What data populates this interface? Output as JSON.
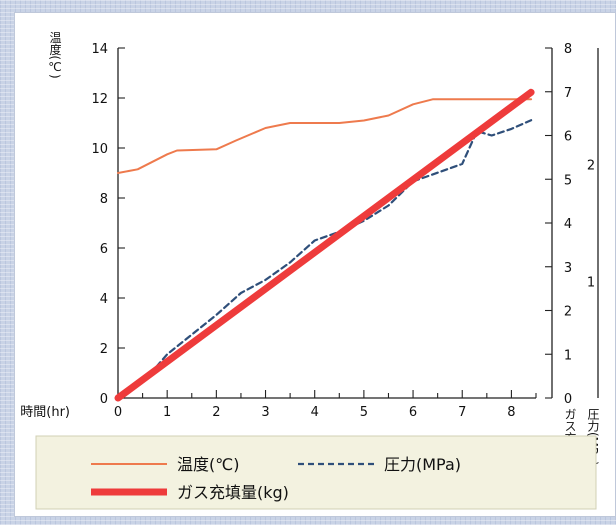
{
  "chart_data": {
    "type": "line",
    "x_axis": {
      "label": "時間(hr)",
      "ticks": [
        "0",
        "1",
        "2",
        "3",
        "4",
        "5",
        "6",
        "7",
        "8"
      ],
      "range": [
        0,
        8.5
      ],
      "minor_tick_step": 0.5
    },
    "y_left": {
      "label": "温度(℃)",
      "ticks": [
        "0",
        "2",
        "4",
        "6",
        "8",
        "10",
        "12",
        "14"
      ],
      "range": [
        0,
        14
      ]
    },
    "y_right_pressure": {
      "label": "圧力(MPa)",
      "ticks": [
        "0",
        "1",
        "2",
        "3",
        "4",
        "5",
        "6",
        "7",
        "8"
      ],
      "range": [
        0,
        8
      ]
    },
    "y_right_gas": {
      "label": "ガス充填量(kg)",
      "ticks": [
        "1",
        "2"
      ],
      "range": [
        0,
        3.0
      ]
    },
    "grid": false,
    "legend_position": "bottom",
    "series": [
      {
        "name": "温度(℃)",
        "axis": "temperature",
        "color": "#ee7a4d",
        "style": "solid",
        "x": [
          0,
          0.4,
          1,
          1.2,
          2,
          2.4,
          3,
          3.5,
          4,
          4.5,
          5,
          5.5,
          6,
          6.4,
          7,
          7.5,
          8,
          8.4
        ],
        "y": [
          9.0,
          9.15,
          9.75,
          9.9,
          9.95,
          10.3,
          10.8,
          11.0,
          11.0,
          11.0,
          11.1,
          11.3,
          11.75,
          11.95,
          11.95,
          11.95,
          11.95,
          11.95
        ]
      },
      {
        "name": "圧力(MPa)",
        "axis": "pressure",
        "color": "#2f4f7a",
        "style": "dashed",
        "x": [
          0,
          0.5,
          1,
          1.5,
          2,
          2.5,
          3,
          3.5,
          4,
          4.5,
          5,
          5.5,
          6,
          6.5,
          7,
          7.3,
          7.6,
          8,
          8.4
        ],
        "y": [
          0,
          0.35,
          1.0,
          1.45,
          1.9,
          2.4,
          2.7,
          3.1,
          3.6,
          3.8,
          4.05,
          4.4,
          4.95,
          5.15,
          5.35,
          6.1,
          6.0,
          6.15,
          6.35
        ]
      },
      {
        "name": "ガス充填量(kg)",
        "axis": "gas",
        "color": "#ee3b3b",
        "style": "thick",
        "x": [
          0,
          8.4
        ],
        "y": [
          0,
          2.62
        ]
      }
    ]
  }
}
